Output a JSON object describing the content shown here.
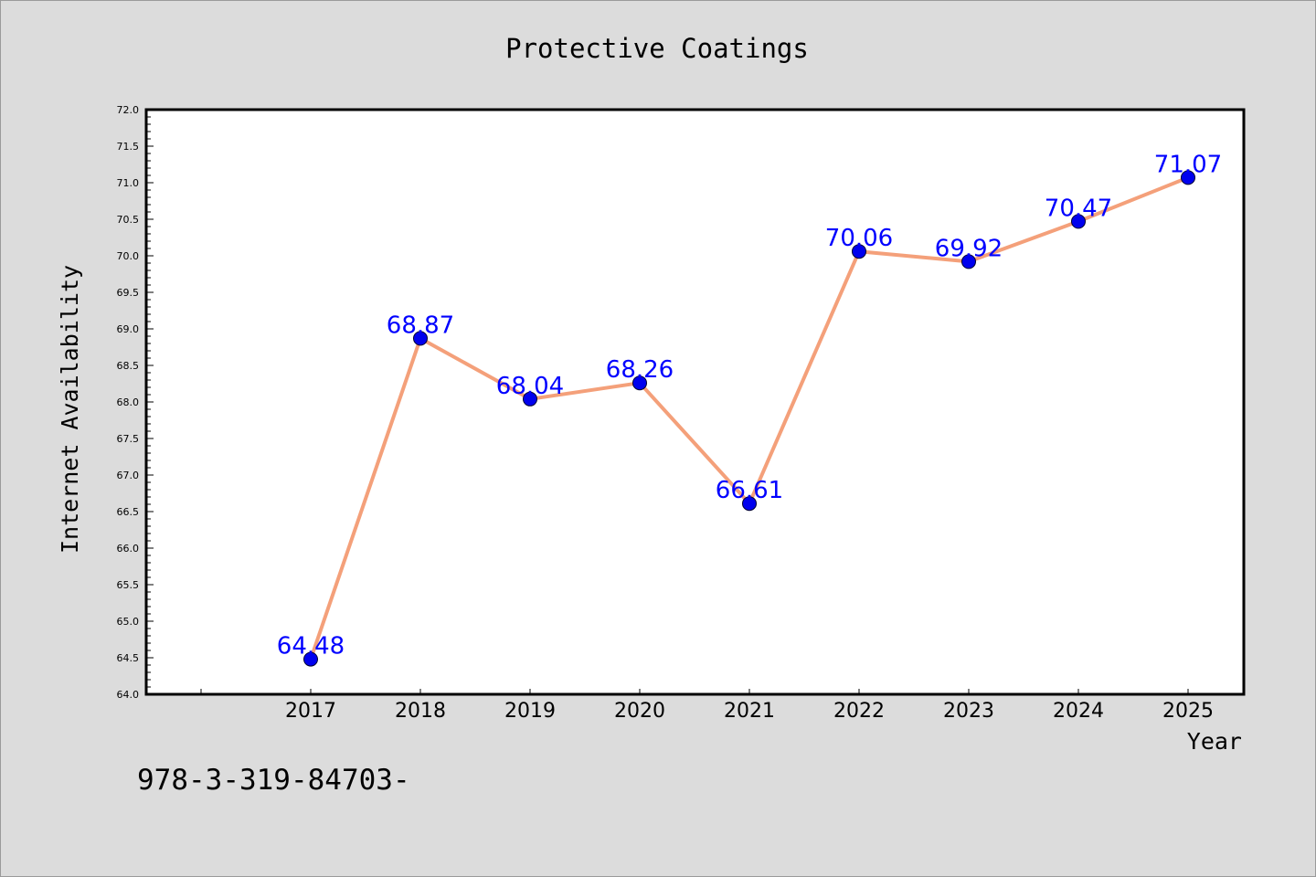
{
  "chart_data": {
    "type": "line",
    "title": "Protective Coatings",
    "xlabel": "Year",
    "ylabel": "Internet Availability",
    "categories": [
      "2017",
      "2018",
      "2019",
      "2020",
      "2021",
      "2022",
      "2023",
      "2024",
      "2025"
    ],
    "series": [
      {
        "values": [
          64.48,
          68.87,
          68.04,
          68.26,
          66.61,
          70.06,
          69.92,
          70.47,
          71.07
        ]
      }
    ],
    "data_labels": [
      "64.48",
      "68.87",
      "68.04",
      "68.26",
      "66.61",
      "70.06",
      "69.92",
      "70.47",
      "71.07"
    ],
    "ylim": [
      64.0,
      72.0
    ],
    "y_ticks": [
      "64.0",
      "64.5",
      "65.0",
      "65.5",
      "66.0",
      "66.5",
      "67.0",
      "67.5",
      "68.0",
      "68.5",
      "69.0",
      "69.5",
      "70.0",
      "70.5",
      "71.0",
      "71.5",
      "72.0"
    ],
    "grid": false,
    "legend": "none",
    "colors": {
      "line": "#f4a07a",
      "marker": "#0000ee",
      "label": "#0000ff",
      "background": "#dcdcdc",
      "plot_area": "#ffffff"
    }
  },
  "footer": {
    "text": "978-3-319-84703-"
  }
}
